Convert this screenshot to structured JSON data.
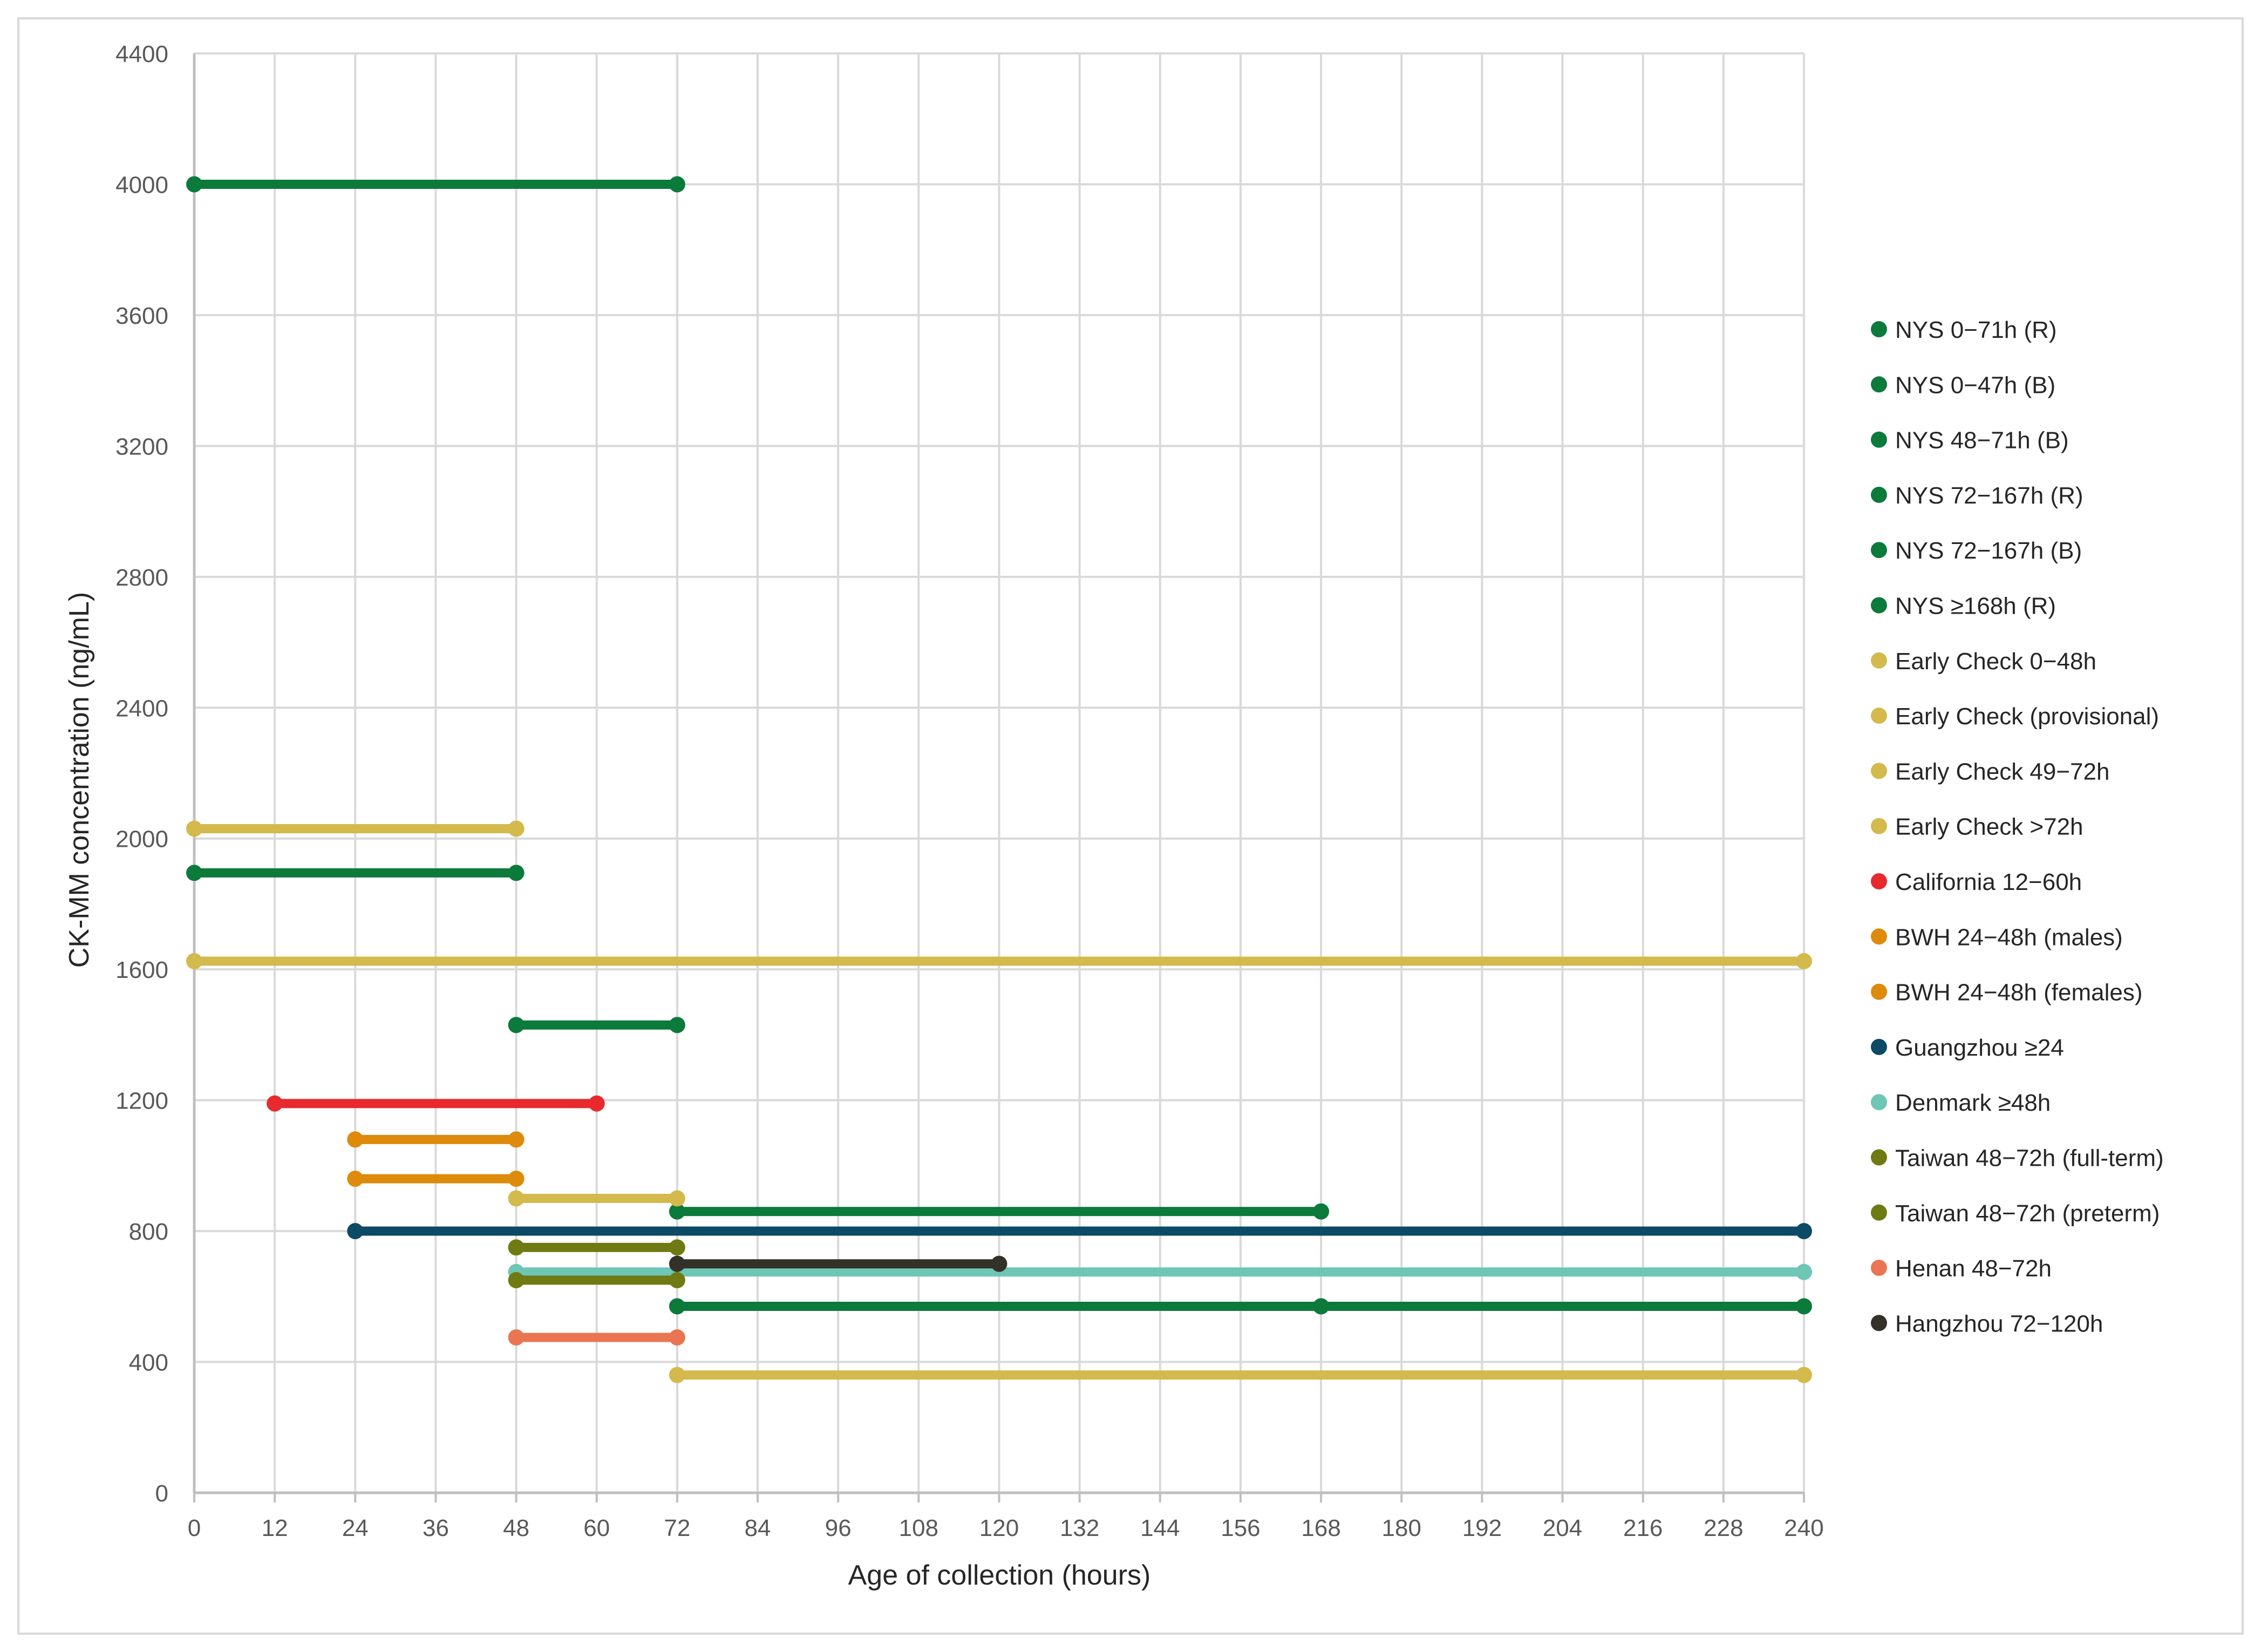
{
  "chart_data": {
    "type": "line",
    "title": "",
    "xlabel": "Age of collection (hours)",
    "ylabel": "CK-MM concentration (ng/mL)",
    "xlim": [
      0,
      240
    ],
    "ylim": [
      0,
      4400
    ],
    "xticks": [
      0,
      12,
      24,
      36,
      48,
      60,
      72,
      84,
      96,
      108,
      120,
      132,
      144,
      156,
      168,
      180,
      192,
      204,
      216,
      228,
      240
    ],
    "yticks": [
      0,
      400,
      800,
      1200,
      1600,
      2000,
      2400,
      2800,
      3200,
      3600,
      4000,
      4400
    ],
    "grid": true,
    "legend_position": "right",
    "series": [
      {
        "name": "NYS 0−71h (R)",
        "color": "#0b7a3b",
        "points": [
          [
            0,
            4000
          ],
          [
            72,
            4000
          ]
        ]
      },
      {
        "name": "NYS 0−47h (B)",
        "color": "#0b7a3b",
        "points": [
          [
            0,
            1895
          ],
          [
            48,
            1895
          ]
        ]
      },
      {
        "name": "NYS 48−71h (B)",
        "color": "#0b7a3b",
        "points": [
          [
            48,
            1430
          ],
          [
            72,
            1430
          ]
        ]
      },
      {
        "name": "NYS 72−167h (R)",
        "color": "#0b7a3b",
        "points": [
          [
            72,
            860
          ],
          [
            168,
            860
          ]
        ]
      },
      {
        "name": "NYS 72−167h (B)",
        "color": "#0b7a3b",
        "points": [
          [
            72,
            570
          ],
          [
            168,
            570
          ]
        ]
      },
      {
        "name": "NYS ≥168h (R)",
        "color": "#0b7a3b",
        "points": [
          [
            168,
            570
          ],
          [
            240,
            570
          ]
        ]
      },
      {
        "name": "Early Check 0−48h",
        "color": "#d4b94c",
        "points": [
          [
            0,
            2030
          ],
          [
            48,
            2030
          ]
        ]
      },
      {
        "name": "Early Check (provisional)",
        "color": "#d4b94c",
        "points": [
          [
            0,
            1625
          ],
          [
            240,
            1625
          ]
        ]
      },
      {
        "name": "Early Check 49−72h",
        "color": "#d4b94c",
        "points": [
          [
            48,
            900
          ],
          [
            72,
            900
          ]
        ]
      },
      {
        "name": "Early Check >72h",
        "color": "#d4b94c",
        "points": [
          [
            72,
            360
          ],
          [
            240,
            360
          ]
        ]
      },
      {
        "name": "California 12−60h",
        "color": "#e8292e",
        "points": [
          [
            12,
            1190
          ],
          [
            60,
            1190
          ]
        ]
      },
      {
        "name": "BWH 24−48h (males)",
        "color": "#de8a0a",
        "points": [
          [
            24,
            1080
          ],
          [
            48,
            1080
          ]
        ]
      },
      {
        "name": "BWH 24−48h (females)",
        "color": "#de8a0a",
        "points": [
          [
            24,
            960
          ],
          [
            48,
            960
          ]
        ]
      },
      {
        "name": "Guangzhou ≥24",
        "color": "#0c4a66",
        "points": [
          [
            24,
            800
          ],
          [
            240,
            800
          ]
        ]
      },
      {
        "name": "Denmark ≥48h",
        "color": "#6ec6b5",
        "points": [
          [
            48,
            675
          ],
          [
            240,
            675
          ]
        ]
      },
      {
        "name": "Taiwan 48−72h (full-term)",
        "color": "#6f7a12",
        "points": [
          [
            48,
            750
          ],
          [
            72,
            750
          ]
        ]
      },
      {
        "name": "Taiwan 48−72h (preterm)",
        "color": "#6f7a12",
        "points": [
          [
            48,
            650
          ],
          [
            72,
            650
          ]
        ]
      },
      {
        "name": "Henan 48−72h",
        "color": "#ea7552",
        "points": [
          [
            48,
            475
          ],
          [
            72,
            475
          ]
        ]
      },
      {
        "name": "Hangzhou 72−120h",
        "color": "#333128",
        "points": [
          [
            72,
            700
          ],
          [
            120,
            700
          ]
        ]
      }
    ]
  }
}
